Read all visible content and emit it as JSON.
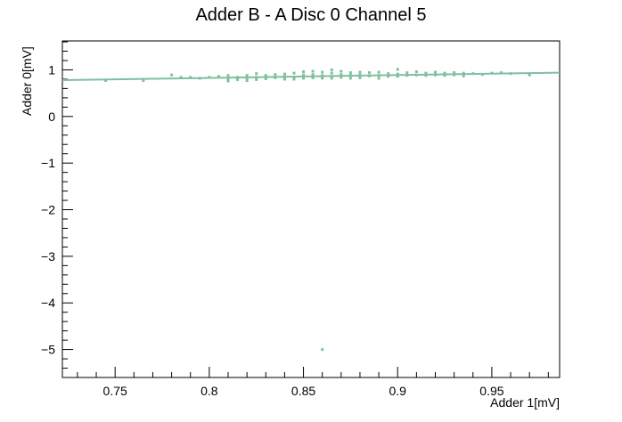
{
  "chart_data": {
    "type": "scatter",
    "title": "Adder B - A Disc 0 Channel 5",
    "xlabel": "Adder 1[mV]",
    "ylabel": "Adder 0[mV]",
    "xlim": [
      0.722,
      0.986
    ],
    "ylim": [
      -5.6,
      1.62
    ],
    "xticks": [
      0.75,
      0.8,
      0.85,
      0.9,
      0.95
    ],
    "xtick_labels": [
      "0.75",
      "0.8",
      "0.85",
      "0.9",
      "0.95"
    ],
    "yticks": [
      -5,
      -4,
      -3,
      -2,
      -1,
      0,
      1
    ],
    "ytick_labels": [
      "−5",
      "−4",
      "−3",
      "−2",
      "−1",
      "0",
      "1"
    ],
    "grid": false,
    "legend": "none",
    "marker_color": "#7fbf9f",
    "line_color": "#7fbf9f",
    "fit_line": {
      "x": [
        0.722,
        0.986
      ],
      "y": [
        0.78,
        0.94
      ]
    },
    "points": [
      {
        "x": 0.745,
        "y": 0.77
      },
      {
        "x": 0.765,
        "y": 0.77
      },
      {
        "x": 0.78,
        "y": 0.89
      },
      {
        "x": 0.785,
        "y": 0.84
      },
      {
        "x": 0.79,
        "y": 0.84
      },
      {
        "x": 0.795,
        "y": 0.82
      },
      {
        "x": 0.8,
        "y": 0.84
      },
      {
        "x": 0.805,
        "y": 0.86
      },
      {
        "x": 0.81,
        "y": 0.8
      },
      {
        "x": 0.81,
        "y": 0.76
      },
      {
        "x": 0.81,
        "y": 0.88
      },
      {
        "x": 0.815,
        "y": 0.84
      },
      {
        "x": 0.815,
        "y": 0.79
      },
      {
        "x": 0.82,
        "y": 0.88
      },
      {
        "x": 0.82,
        "y": 0.8
      },
      {
        "x": 0.82,
        "y": 0.77
      },
      {
        "x": 0.825,
        "y": 0.92
      },
      {
        "x": 0.825,
        "y": 0.84
      },
      {
        "x": 0.825,
        "y": 0.79
      },
      {
        "x": 0.83,
        "y": 0.88
      },
      {
        "x": 0.83,
        "y": 0.81
      },
      {
        "x": 0.835,
        "y": 0.9
      },
      {
        "x": 0.835,
        "y": 0.83
      },
      {
        "x": 0.84,
        "y": 0.91
      },
      {
        "x": 0.84,
        "y": 0.85
      },
      {
        "x": 0.84,
        "y": 0.8
      },
      {
        "x": 0.845,
        "y": 0.93
      },
      {
        "x": 0.845,
        "y": 0.84
      },
      {
        "x": 0.845,
        "y": 0.8
      },
      {
        "x": 0.85,
        "y": 0.96
      },
      {
        "x": 0.85,
        "y": 0.89
      },
      {
        "x": 0.85,
        "y": 0.82
      },
      {
        "x": 0.855,
        "y": 0.97
      },
      {
        "x": 0.855,
        "y": 0.9
      },
      {
        "x": 0.855,
        "y": 0.83
      },
      {
        "x": 0.86,
        "y": -5.0
      },
      {
        "x": 0.86,
        "y": 0.95
      },
      {
        "x": 0.86,
        "y": 0.88
      },
      {
        "x": 0.86,
        "y": 0.82
      },
      {
        "x": 0.865,
        "y": 1.0
      },
      {
        "x": 0.865,
        "y": 0.93
      },
      {
        "x": 0.865,
        "y": 0.86
      },
      {
        "x": 0.865,
        "y": 0.82
      },
      {
        "x": 0.87,
        "y": 0.97
      },
      {
        "x": 0.87,
        "y": 0.9
      },
      {
        "x": 0.87,
        "y": 0.84
      },
      {
        "x": 0.875,
        "y": 0.94
      },
      {
        "x": 0.875,
        "y": 0.88
      },
      {
        "x": 0.875,
        "y": 0.82
      },
      {
        "x": 0.88,
        "y": 0.95
      },
      {
        "x": 0.88,
        "y": 0.89
      },
      {
        "x": 0.88,
        "y": 0.83
      },
      {
        "x": 0.885,
        "y": 0.94
      },
      {
        "x": 0.885,
        "y": 0.87
      },
      {
        "x": 0.89,
        "y": 0.95
      },
      {
        "x": 0.89,
        "y": 0.88
      },
      {
        "x": 0.89,
        "y": 0.82
      },
      {
        "x": 0.895,
        "y": 0.92
      },
      {
        "x": 0.895,
        "y": 0.86
      },
      {
        "x": 0.9,
        "y": 1.01
      },
      {
        "x": 0.9,
        "y": 0.91
      },
      {
        "x": 0.9,
        "y": 0.86
      },
      {
        "x": 0.905,
        "y": 0.94
      },
      {
        "x": 0.905,
        "y": 0.88
      },
      {
        "x": 0.91,
        "y": 0.96
      },
      {
        "x": 0.91,
        "y": 0.89
      },
      {
        "x": 0.915,
        "y": 0.93
      },
      {
        "x": 0.915,
        "y": 0.88
      },
      {
        "x": 0.92,
        "y": 0.95
      },
      {
        "x": 0.92,
        "y": 0.89
      },
      {
        "x": 0.925,
        "y": 0.93
      },
      {
        "x": 0.925,
        "y": 0.88
      },
      {
        "x": 0.93,
        "y": 0.94
      },
      {
        "x": 0.93,
        "y": 0.89
      },
      {
        "x": 0.935,
        "y": 0.93
      },
      {
        "x": 0.935,
        "y": 0.87
      },
      {
        "x": 0.94,
        "y": 0.92
      },
      {
        "x": 0.945,
        "y": 0.9
      },
      {
        "x": 0.95,
        "y": 0.93
      },
      {
        "x": 0.955,
        "y": 0.94
      },
      {
        "x": 0.96,
        "y": 0.92
      },
      {
        "x": 0.97,
        "y": 0.89
      }
    ]
  }
}
